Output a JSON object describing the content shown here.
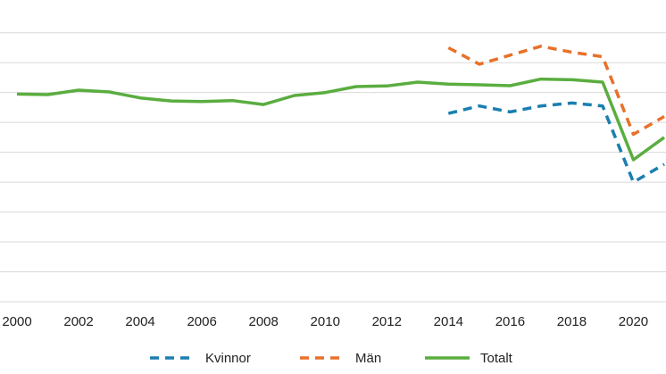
{
  "chart_data": {
    "type": "line",
    "x": [
      2000,
      2001,
      2002,
      2003,
      2004,
      2005,
      2006,
      2007,
      2008,
      2009,
      2010,
      2011,
      2012,
      2013,
      2014,
      2015,
      2016,
      2017,
      2018,
      2019,
      2020,
      2021
    ],
    "x_tick_labels": [
      "2000",
      "2002",
      "2004",
      "2006",
      "2008",
      "2010",
      "2012",
      "2014",
      "2016",
      "2018",
      "2020"
    ],
    "xlim": [
      2000,
      2021
    ],
    "ylim": [
      0,
      9.5
    ],
    "grid": true,
    "legend_position": "bottom",
    "series": [
      {
        "name": "Kvinnor",
        "color": "#1a7fb0",
        "style": "dashed",
        "values": [
          null,
          null,
          null,
          null,
          null,
          null,
          null,
          null,
          null,
          null,
          null,
          null,
          null,
          null,
          6.3,
          6.55,
          6.35,
          6.55,
          6.65,
          6.55,
          4.0,
          4.6
        ]
      },
      {
        "name": "Män",
        "color": "#e8712a",
        "style": "dashed",
        "values": [
          null,
          null,
          null,
          null,
          null,
          null,
          null,
          null,
          null,
          null,
          null,
          null,
          null,
          null,
          8.5,
          7.95,
          8.25,
          8.55,
          8.35,
          8.2,
          5.6,
          6.2
        ]
      },
      {
        "name": "Totalt",
        "color": "#5aad3f",
        "style": "solid",
        "values": [
          6.95,
          6.93,
          7.08,
          7.02,
          6.82,
          6.72,
          6.7,
          6.73,
          6.6,
          6.9,
          7.0,
          7.2,
          7.22,
          7.35,
          7.28,
          7.26,
          7.23,
          7.45,
          7.43,
          7.35,
          4.75,
          5.5
        ]
      }
    ]
  }
}
